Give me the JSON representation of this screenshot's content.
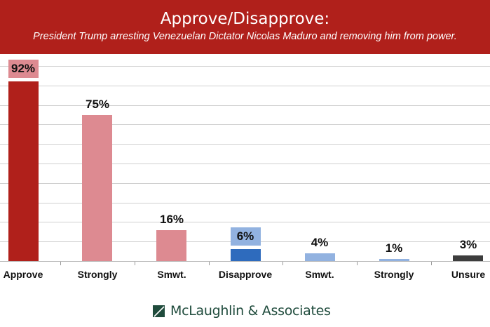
{
  "header": {
    "title": "Approve/Disapprove:",
    "subtitle": "President Trump arresting Venezuelan Dictator Nicolas Maduro and removing him from power."
  },
  "chart_data": {
    "type": "bar",
    "title": "Approve/Disapprove:",
    "subtitle": "President Trump arresting Venezuelan Dictator Nicolas Maduro and removing him from power.",
    "categories": [
      "Approve",
      "Strongly",
      "Smwt.",
      "Disapprove",
      "Smwt.",
      "Strongly",
      "Unsure"
    ],
    "values": [
      92,
      75,
      16,
      6,
      4,
      1,
      3
    ],
    "value_labels": [
      "92%",
      "75%",
      "16%",
      "6%",
      "4%",
      "1%",
      "3%"
    ],
    "colors": [
      "#b0201b",
      "#dd8a91",
      "#dd8a91",
      "#2e6bbd",
      "#92b2e0",
      "#92b2e0",
      "#3d3d3d"
    ],
    "xlabel": "",
    "ylabel": "",
    "ylim": [
      0,
      100
    ],
    "grid": true,
    "legend": "none"
  },
  "bars": [
    {
      "label": "Approve",
      "value": 92,
      "text": "92%",
      "color": "#b0201b",
      "label_bg": "#dd8a91"
    },
    {
      "label": "Strongly",
      "value": 75,
      "text": "75%",
      "color": "#dd8a91"
    },
    {
      "label": "Smwt.",
      "value": 16,
      "text": "16%",
      "color": "#dd8a91"
    },
    {
      "label": "Disapprove",
      "value": 6,
      "text": "6%",
      "color": "#2e6bbd",
      "label_bg": "#92b2e0"
    },
    {
      "label": "Smwt.",
      "value": 4,
      "text": "4%",
      "color": "#92b2e0"
    },
    {
      "label": "Strongly",
      "value": 1,
      "text": "1%",
      "color": "#92b2e0"
    },
    {
      "label": "Unsure",
      "value": 3,
      "text": "3%",
      "color": "#3d3d3d"
    }
  ],
  "footer": {
    "brand": "McLaughlin & Associates",
    "logo_icon": "mclaughlin-logo-icon"
  }
}
